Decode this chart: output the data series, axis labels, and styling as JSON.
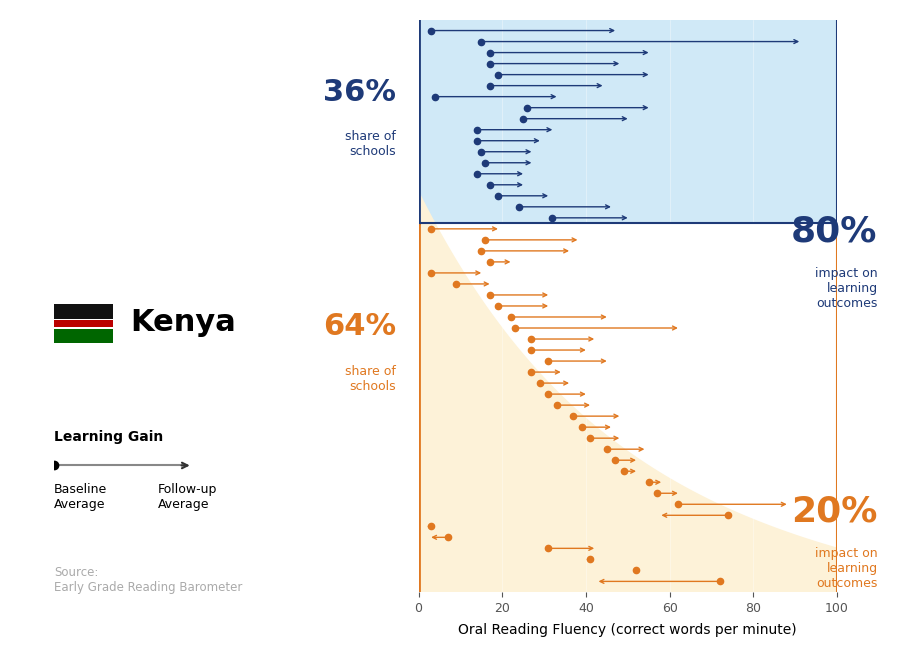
{
  "blue_arrows": [
    [
      3,
      47
    ],
    [
      15,
      91
    ],
    [
      17,
      55
    ],
    [
      17,
      48
    ],
    [
      19,
      55
    ],
    [
      17,
      44
    ],
    [
      4,
      33
    ],
    [
      26,
      55
    ],
    [
      25,
      50
    ],
    [
      14,
      32
    ],
    [
      14,
      29
    ],
    [
      15,
      27
    ],
    [
      16,
      27
    ],
    [
      14,
      25
    ],
    [
      17,
      25
    ],
    [
      19,
      31
    ],
    [
      24,
      46
    ],
    [
      32,
      50
    ]
  ],
  "orange_arrows": [
    [
      3,
      19
    ],
    [
      16,
      38
    ],
    [
      15,
      36
    ],
    [
      17,
      22
    ],
    [
      3,
      15
    ],
    [
      9,
      17
    ],
    [
      17,
      31
    ],
    [
      19,
      31
    ],
    [
      22,
      45
    ],
    [
      23,
      62
    ],
    [
      27,
      42
    ],
    [
      27,
      40
    ],
    [
      31,
      45
    ],
    [
      27,
      34
    ],
    [
      29,
      36
    ],
    [
      31,
      40
    ],
    [
      33,
      41
    ],
    [
      37,
      48
    ],
    [
      39,
      46
    ],
    [
      41,
      48
    ],
    [
      45,
      54
    ],
    [
      47,
      52
    ],
    [
      49,
      52
    ],
    [
      55,
      58
    ],
    [
      57,
      62
    ],
    [
      62,
      88
    ],
    [
      74,
      58
    ],
    [
      3,
      2
    ],
    [
      7,
      3
    ],
    [
      31,
      42
    ],
    [
      41,
      40
    ],
    [
      52,
      53
    ],
    [
      72,
      43
    ]
  ],
  "blue_color": "#1e3a78",
  "orange_color": "#e07820",
  "blue_bg": "#d0e9f7",
  "orange_bg": "#fdf2d8",
  "xlim": [
    0,
    100
  ],
  "xlabel": "Oral Reading Fluency (correct words per minute)",
  "source_text": "Source:\nEarly Grade Reading Barometer",
  "legend_title": "Learning Gain",
  "pct_blue": "36%",
  "pct_orange": "64%",
  "pct_blue_label": "share of\nschools",
  "pct_orange_label": "share of\nschools",
  "impact_blue_pct": "80%",
  "impact_blue_label": "impact on\nlearning\noutcomes",
  "impact_orange_pct": "20%",
  "impact_orange_label": "impact on\nlearning\noutcomes"
}
